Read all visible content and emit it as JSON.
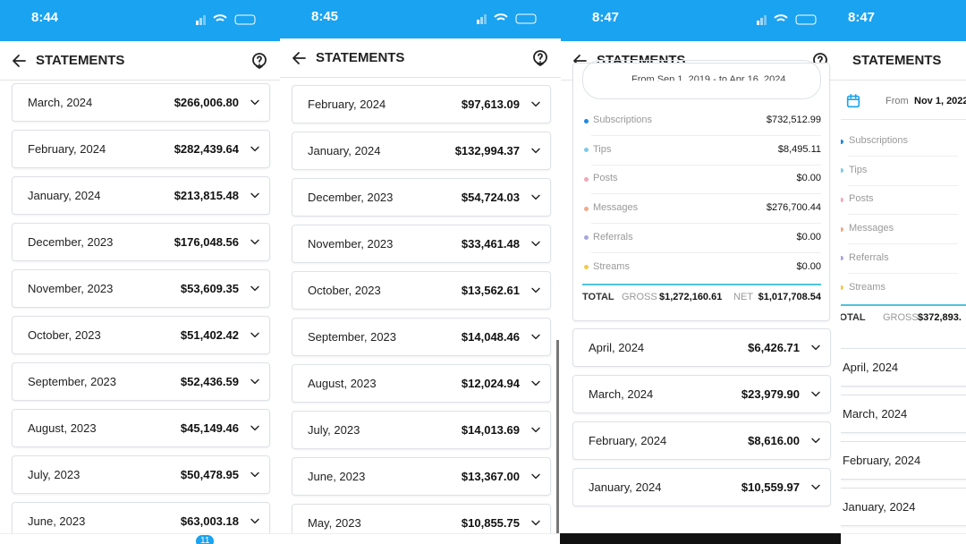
{
  "panels": [
    {
      "time": "8:44",
      "title": "STATEMENTS",
      "badge": "11",
      "months": [
        {
          "label": "March, 2024",
          "amount": "$266,006.80"
        },
        {
          "label": "February, 2024",
          "amount": "$282,439.64"
        },
        {
          "label": "January, 2024",
          "amount": "$213,815.48"
        },
        {
          "label": "December, 2023",
          "amount": "$176,048.56"
        },
        {
          "label": "November, 2023",
          "amount": "$53,609.35"
        },
        {
          "label": "October, 2023",
          "amount": "$51,402.42"
        },
        {
          "label": "September, 2023",
          "amount": "$52,436.59"
        },
        {
          "label": "August, 2023",
          "amount": "$45,149.46"
        },
        {
          "label": "July, 2023",
          "amount": "$50,478.95"
        },
        {
          "label": "June, 2023",
          "amount": "$63,003.18"
        }
      ]
    },
    {
      "time": "8:45",
      "title": "STATEMENTS",
      "months": [
        {
          "label": "February, 2024",
          "amount": "$97,613.09"
        },
        {
          "label": "January, 2024",
          "amount": "$132,994.37"
        },
        {
          "label": "December, 2023",
          "amount": "$54,724.03"
        },
        {
          "label": "November, 2023",
          "amount": "$33,461.48"
        },
        {
          "label": "October, 2023",
          "amount": "$13,562.61"
        },
        {
          "label": "September, 2023",
          "amount": "$14,048.46"
        },
        {
          "label": "August, 2023",
          "amount": "$12,024.94"
        },
        {
          "label": "July, 2023",
          "amount": "$14,013.69"
        },
        {
          "label": "June, 2023",
          "amount": "$13,367.00"
        },
        {
          "label": "May, 2023",
          "amount": "$10,855.75"
        }
      ]
    },
    {
      "time": "8:47",
      "title": "STATEMENTS",
      "date_range": "From Sep 1, 2019 - to Apr 16, 2024",
      "breakdown": [
        {
          "name": "Subscriptions",
          "amount": "$732,512.99",
          "color": "#1e88e5"
        },
        {
          "name": "Tips",
          "amount": "$8,495.11",
          "color": "#7ecbe6"
        },
        {
          "name": "Posts",
          "amount": "$0.00",
          "color": "#f3a5b8"
        },
        {
          "name": "Messages",
          "amount": "$276,700.44",
          "color": "#f2a98a"
        },
        {
          "name": "Referrals",
          "amount": "$0.00",
          "color": "#a9a6dc"
        },
        {
          "name": "Streams",
          "amount": "$0.00",
          "color": "#f2c94c"
        }
      ],
      "total": {
        "label": "TOTAL",
        "gross_label": "GROSS",
        "gross": "$1,272,160.61",
        "net_label": "NET",
        "net": "$1,017,708.54"
      },
      "months": [
        {
          "label": "April, 2024",
          "amount": "$6,426.71"
        },
        {
          "label": "March, 2024",
          "amount": "$23,979.90"
        },
        {
          "label": "February, 2024",
          "amount": "$8,616.00"
        },
        {
          "label": "January, 2024",
          "amount": "$10,559.97"
        }
      ]
    },
    {
      "time": "8:47",
      "title": "STATEMENTS",
      "date_from_label": "From",
      "date_from": "Nov 1, 2022",
      "breakdown": [
        {
          "name": "Subscriptions",
          "color": "#1e88e5"
        },
        {
          "name": "Tips",
          "color": "#7ecbe6"
        },
        {
          "name": "Posts",
          "color": "#f3a5b8"
        },
        {
          "name": "Messages",
          "color": "#f2a98a"
        },
        {
          "name": "Referrals",
          "color": "#a9a6dc"
        },
        {
          "name": "Streams",
          "color": "#f2c94c"
        }
      ],
      "total": {
        "label": "TOTAL",
        "gross_label": "GROSS",
        "gross": "$372,893."
      },
      "months": [
        {
          "label": "April, 2024"
        },
        {
          "label": "March, 2024"
        },
        {
          "label": "February, 2024"
        },
        {
          "label": "January, 2024"
        }
      ]
    }
  ]
}
